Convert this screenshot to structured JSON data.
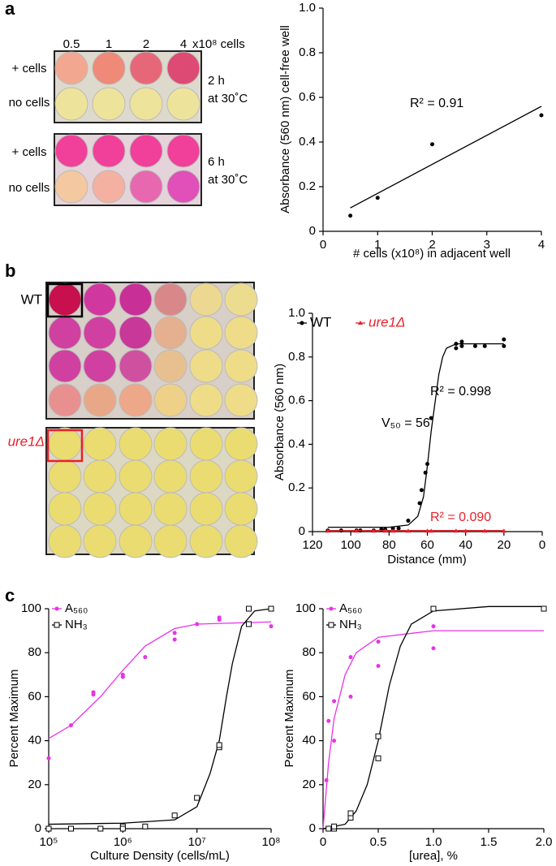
{
  "panel_labels": [
    "a",
    "b",
    "c"
  ],
  "photo_a": {
    "columns": [
      "0.5",
      "1",
      "2",
      "4"
    ],
    "unit": "x10⁸ cells",
    "rows": [
      "+ cells",
      "no cells"
    ],
    "conditions": [
      [
        "2 h",
        "at 30˚C"
      ],
      [
        "6 h",
        "at 30˚C"
      ]
    ]
  },
  "photo_b": {
    "strains": [
      "WT",
      "ure1Δ"
    ]
  },
  "chart_data": [
    {
      "type": "scatter",
      "x_label": "# cells (x10⁸) in adjacent well",
      "y_label": "Absorbance (560 nm) cell-free well",
      "xlim": [
        0,
        4
      ],
      "ylim": [
        0,
        1
      ],
      "xticks": [
        0,
        1,
        2,
        3,
        4
      ],
      "yticks": [
        0,
        0.2,
        0.4,
        0.6,
        0.8,
        {
          "value": 1,
          "label": "1.0"
        }
      ],
      "annotations": [
        "R² = 0.91"
      ],
      "series": [
        {
          "color": "#000000",
          "marker": "dot",
          "x": [
            0.5,
            1,
            2,
            4
          ],
          "y": [
            0.07,
            0.15,
            0.39,
            0.52
          ],
          "fit": {
            "x": [
              0.5,
              4
            ],
            "y": [
              0.105,
              0.56
            ]
          }
        }
      ]
    },
    {
      "type": "scatter",
      "x_label": "Distance (mm)",
      "y_label": "Absorbance (560 nm)",
      "xlim": [
        120,
        0
      ],
      "ylim": [
        0,
        1
      ],
      "xticks": [
        120,
        100,
        80,
        60,
        40,
        20,
        0
      ],
      "yticks": [
        0,
        0.2,
        0.4,
        0.6,
        0.8,
        {
          "value": 1,
          "label": "1.0"
        }
      ],
      "annotations": [
        "V₅₀ = 56",
        "R² = 0.998",
        "R² = 0.090"
      ],
      "series": [
        {
          "name": "WT",
          "color": "#000000",
          "marker": "dot",
          "x": [
            112,
            105,
            97,
            95,
            88,
            84,
            82,
            78,
            75,
            70,
            64,
            63,
            61,
            60,
            58,
            45,
            45,
            42,
            42,
            35,
            30,
            20,
            20
          ],
          "y": [
            0.005,
            0.005,
            0.005,
            0.005,
            0.005,
            0.01,
            0.01,
            0.015,
            0.015,
            0.05,
            0.13,
            0.19,
            0.27,
            0.31,
            0.52,
            0.84,
            0.86,
            0.87,
            0.85,
            0.85,
            0.85,
            0.88,
            0.85
          ],
          "fit": {
            "x": [
              112,
              80,
              70,
              65,
              62,
              60,
              58,
              56,
              54,
              52,
              50,
              45,
              20
            ],
            "y": [
              0.02,
              0.02,
              0.03,
              0.07,
              0.16,
              0.3,
              0.46,
              0.59,
              0.72,
              0.8,
              0.84,
              0.86,
              0.86
            ]
          }
        },
        {
          "name": "ure1Δ",
          "color": "#e8202a",
          "marker": "triangle",
          "x": [
            112,
            97,
            88,
            82,
            78,
            70,
            60,
            58,
            45,
            40,
            30,
            20
          ],
          "y": [
            0.003,
            0.003,
            0.003,
            0.003,
            0.003,
            0.003,
            0.003,
            0.003,
            0.003,
            0.003,
            0.003,
            0.003
          ],
          "fit": {
            "x": [
              112,
              20
            ],
            "y": [
              0.005,
              0.005
            ]
          }
        }
      ]
    },
    {
      "type": "scatter",
      "log_x": true,
      "x_label": "Culture Density (cells/mL)",
      "y_label": "Percent Maximum",
      "xlim": [
        100000,
        100000000
      ],
      "ylim": [
        0,
        100
      ],
      "xticks": [
        {
          "value": 100000,
          "label": "10⁵"
        },
        {
          "value": 1000000,
          "label": "10⁶"
        },
        {
          "value": 10000000,
          "label": "10⁷"
        },
        {
          "value": 100000000,
          "label": "10⁸"
        }
      ],
      "yticks": [
        0,
        20,
        40,
        60,
        80,
        100
      ],
      "series": [
        {
          "name": "A₅₆₀",
          "color": "#e832e8",
          "marker": "dot",
          "x": [
            100000,
            200000,
            400000,
            400000,
            1000000,
            1000000,
            2000000,
            5000000,
            5000000,
            10000000,
            20000000,
            20000000,
            50000000,
            100000000,
            100000000
          ],
          "y": [
            32,
            47,
            61,
            62,
            69,
            70,
            78,
            86,
            89,
            93,
            95,
            96,
            100,
            100,
            92
          ],
          "fit": {
            "x": [
              100000,
              200000,
              500000,
              1000000,
              2000000,
              5000000,
              10000000,
              100000000
            ],
            "y": [
              41,
              47,
              60,
              72,
              83,
              91,
              93,
              94
            ]
          }
        },
        {
          "name": "NH₃",
          "color": "#000000",
          "marker": "square",
          "x": [
            100000,
            200000,
            500000,
            1000000,
            1000000,
            2000000,
            5000000,
            10000000,
            20000000,
            20000000,
            50000000,
            50000000,
            100000000
          ],
          "y": [
            0,
            0,
            0,
            1,
            0,
            1,
            6,
            14,
            37,
            38,
            100,
            93,
            100
          ],
          "fit": {
            "x": [
              100000,
              1000000,
              5000000,
              10000000,
              15000000,
              20000000,
              25000000,
              30000000,
              40000000,
              60000000,
              100000000
            ],
            "y": [
              2,
              2.5,
              4,
              10,
              25,
              40,
              60,
              75,
              92,
              99,
              100
            ]
          }
        }
      ]
    },
    {
      "type": "scatter",
      "x_label": "[urea], %",
      "y_label": "Percent Maximum",
      "xlim": [
        0,
        2
      ],
      "ylim": [
        0,
        100
      ],
      "xticks": [
        0,
        0.5,
        {
          "value": 1,
          "label": "1.0"
        },
        1.5,
        {
          "value": 2,
          "label": "2.0"
        }
      ],
      "yticks": [
        0,
        20,
        40,
        60,
        80,
        100
      ],
      "series": [
        {
          "name": "A₅₆₀",
          "color": "#e832e8",
          "marker": "dot",
          "x": [
            0.03,
            0.05,
            0.1,
            0.1,
            0.25,
            0.25,
            0.5,
            0.5,
            1,
            1,
            2
          ],
          "y": [
            22,
            49,
            40,
            58,
            60,
            78,
            74,
            85,
            82,
            92,
            100
          ],
          "fit": {
            "x": [
              0,
              0.05,
              0.1,
              0.2,
              0.3,
              0.5,
              1,
              2
            ],
            "y": [
              0,
              30,
              50,
              70,
              80,
              87,
              90,
              90
            ]
          }
        },
        {
          "name": "NH₃",
          "color": "#000000",
          "marker": "square",
          "x": [
            0.05,
            0.1,
            0.1,
            0.25,
            0.25,
            0.5,
            0.5,
            1,
            2
          ],
          "y": [
            0,
            0,
            1,
            5,
            7,
            32,
            42,
            100,
            100
          ],
          "fit": {
            "x": [
              0,
              0.2,
              0.3,
              0.4,
              0.5,
              0.6,
              0.7,
              0.8,
              1,
              1.5,
              2
            ],
            "y": [
              0,
              2,
              8,
              20,
              40,
              65,
              83,
              93,
              99,
              101,
              101
            ]
          }
        }
      ]
    }
  ]
}
